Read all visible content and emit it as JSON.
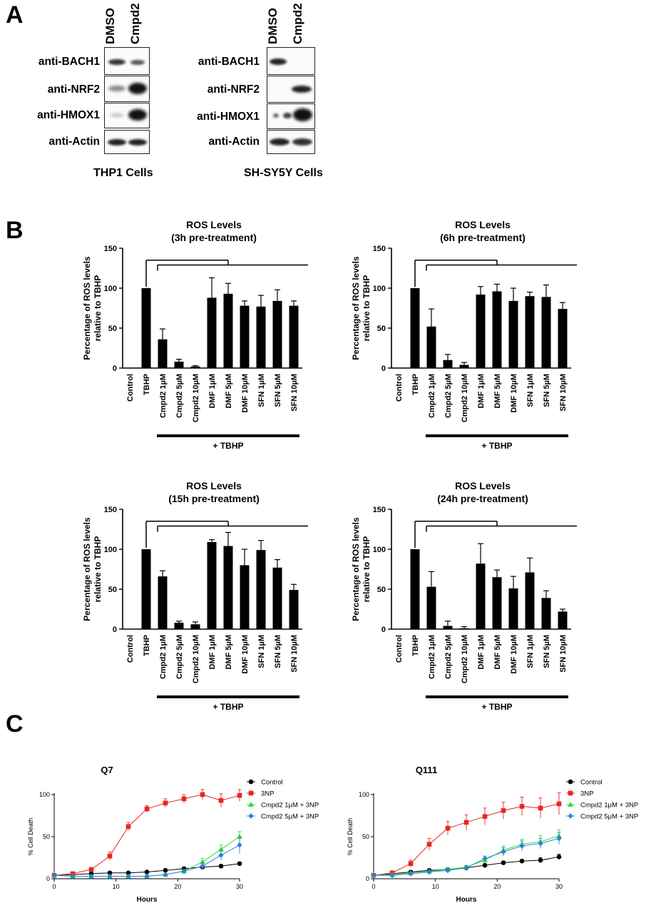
{
  "panels": {
    "a": "A",
    "b": "B",
    "c": "C"
  },
  "western_blots": [
    {
      "columns": [
        "DMSO",
        "Cmpd2"
      ],
      "rows": [
        "anti-BACH1",
        "anti-NRF2",
        "anti-HMOX1",
        "anti-Actin"
      ],
      "caption": "THP1 Cells"
    },
    {
      "columns": [
        "DMSO",
        "Cmpd2"
      ],
      "rows": [
        "anti-BACH1",
        "anti-NRF2",
        "anti-HMOX1",
        "anti-Actin"
      ],
      "caption": "SH-SY5Y Cells"
    }
  ],
  "chart_data": [
    {
      "type": "bar",
      "title": "ROS Levels",
      "subtitle": "(3h pre-treatment)",
      "ylabel": "Percentage of ROS levels relative to TBHP",
      "ylim": [
        0,
        150
      ],
      "yticks": [
        0,
        50,
        100,
        150
      ],
      "categories": [
        "Control",
        "TBHP",
        "Cmpd2 1µM",
        "Cmpd2 5µM",
        "Cmpd2 10µM",
        "DMF 1µM",
        "DMF 5µM",
        "DMF 10µM",
        "SFN 1µM",
        "SFN 5µM",
        "SFN 10µM"
      ],
      "values": [
        0,
        100,
        36,
        8,
        2,
        88,
        93,
        78,
        77,
        84,
        78
      ],
      "errors": [
        0,
        0,
        13,
        3,
        1,
        25,
        13,
        6,
        14,
        14,
        6
      ],
      "group_label": "+ TBHP"
    },
    {
      "type": "bar",
      "title": "ROS Levels",
      "subtitle": "(6h pre-treatment)",
      "ylabel": "Percentage of ROS levels relative to TBHP",
      "ylim": [
        0,
        150
      ],
      "yticks": [
        0,
        50,
        100,
        150
      ],
      "categories": [
        "Control",
        "TBHP",
        "Cmpd2 1µM",
        "Cmpd2 5µM",
        "Cmpd2 10µM",
        "DMF 1µM",
        "DMF 5µM",
        "DMF 10µM",
        "SFN 1µM",
        "SFN 5µM",
        "SFN 10µM"
      ],
      "values": [
        0,
        100,
        52,
        10,
        4,
        92,
        96,
        84,
        90,
        89,
        74
      ],
      "errors": [
        0,
        0,
        22,
        7,
        3,
        10,
        9,
        16,
        5,
        15,
        8
      ],
      "group_label": "+ TBHP"
    },
    {
      "type": "bar",
      "title": "ROS Levels",
      "subtitle": "(15h pre-treatment)",
      "ylabel": "Percentage of ROS levels relative to TBHP",
      "ylim": [
        0,
        150
      ],
      "yticks": [
        0,
        50,
        100,
        150
      ],
      "categories": [
        "Control",
        "TBHP",
        "Cmpd2 1µM",
        "Cmpd2 5µM",
        "Cmpd2 10µM",
        "DMF 1µM",
        "DMF 5µM",
        "DMF 10µM",
        "SFN 1µM",
        "SFN 5µM",
        "SFN 10µM"
      ],
      "values": [
        0,
        100,
        66,
        8,
        6,
        109,
        104,
        80,
        99,
        77,
        49
      ],
      "errors": [
        0,
        0,
        7,
        2,
        3,
        3,
        17,
        20,
        12,
        10,
        7
      ],
      "group_label": "+ TBHP"
    },
    {
      "type": "bar",
      "title": "ROS Levels",
      "subtitle": "(24h pre-treatment)",
      "ylabel": "Percentage of ROS levels relative to TBHP",
      "ylim": [
        0,
        150
      ],
      "yticks": [
        0,
        50,
        100,
        150
      ],
      "categories": [
        "Control",
        "TBHP",
        "Cmpd2 1µM",
        "Cmpd2 5µM",
        "Cmpd2 10µM",
        "DMF 1µM",
        "DMF 5µM",
        "DMF 10µM",
        "SFN 1µM",
        "SFN 5µM",
        "SFN 10µM"
      ],
      "values": [
        0,
        100,
        53,
        4,
        1,
        82,
        65,
        51,
        71,
        39,
        22
      ],
      "errors": [
        0,
        0,
        19,
        6,
        2,
        25,
        9,
        15,
        18,
        9,
        3
      ],
      "group_label": "+ TBHP"
    },
    {
      "type": "line",
      "title": "Q7",
      "xlabel": "Hours",
      "ylabel": "% Cell Death",
      "xlim": [
        0,
        30
      ],
      "ylim": [
        0,
        100
      ],
      "xticks": [
        0,
        10,
        20,
        30
      ],
      "yticks": [
        0,
        50,
        100
      ],
      "x": [
        0,
        3,
        6,
        9,
        12,
        15,
        18,
        21,
        24,
        27,
        30
      ],
      "series": [
        {
          "name": "Control",
          "color": "#000000",
          "marker": "circle",
          "values": [
            4,
            5,
            6,
            7,
            7,
            8,
            10,
            12,
            14,
            15,
            18
          ],
          "errors": [
            1,
            1,
            1,
            1,
            1,
            1,
            1,
            2,
            2,
            2,
            2
          ]
        },
        {
          "name": "3NP",
          "color": "#e8261f",
          "marker": "square",
          "values": [
            4,
            6,
            11,
            27,
            62,
            83,
            90,
            95,
            100,
            93,
            99
          ],
          "errors": [
            1,
            1,
            2,
            5,
            5,
            4,
            5,
            5,
            6,
            8,
            7
          ]
        },
        {
          "name": "Cmpd2 1µM + 3NP",
          "color": "#33dd33",
          "marker": "triangle",
          "values": [
            4,
            3,
            3,
            3,
            3,
            3,
            5,
            9,
            20,
            35,
            50
          ],
          "errors": [
            1,
            1,
            1,
            1,
            1,
            1,
            1,
            2,
            4,
            5,
            6
          ]
        },
        {
          "name": "Cmpd2 5µM + 3NP",
          "color": "#2f7fe0",
          "marker": "diamond",
          "values": [
            4,
            3,
            3,
            3,
            3,
            3,
            5,
            9,
            15,
            28,
            40
          ],
          "errors": [
            1,
            1,
            1,
            1,
            1,
            1,
            1,
            2,
            4,
            6,
            10
          ]
        }
      ]
    },
    {
      "type": "line",
      "title": "Q111",
      "xlabel": "Hours",
      "ylabel": "% Cell Death",
      "xlim": [
        0,
        30
      ],
      "ylim": [
        0,
        100
      ],
      "xticks": [
        0,
        10,
        20,
        30
      ],
      "yticks": [
        0,
        50,
        100
      ],
      "x": [
        0,
        3,
        6,
        9,
        12,
        15,
        18,
        21,
        24,
        27,
        30
      ],
      "series": [
        {
          "name": "Control",
          "color": "#000000",
          "marker": "circle",
          "values": [
            4,
            6,
            8,
            10,
            11,
            13,
            16,
            19,
            21,
            22,
            26
          ],
          "errors": [
            1,
            1,
            1,
            1,
            1,
            1,
            2,
            2,
            2,
            3,
            3
          ]
        },
        {
          "name": "3NP",
          "color": "#e8261f",
          "marker": "square",
          "values": [
            4,
            7,
            18,
            41,
            60,
            67,
            74,
            81,
            86,
            84,
            89
          ],
          "errors": [
            1,
            1,
            4,
            7,
            8,
            9,
            10,
            10,
            11,
            12,
            13
          ]
        },
        {
          "name": "Cmpd2 1µM + 3NP",
          "color": "#33dd33",
          "marker": "triangle",
          "values": [
            4,
            5,
            7,
            9,
            11,
            14,
            22,
            34,
            41,
            44,
            51
          ],
          "errors": [
            1,
            1,
            1,
            1,
            2,
            2,
            3,
            5,
            6,
            7,
            7
          ]
        },
        {
          "name": "Cmpd2 5µM + 3NP",
          "color": "#2f7fe0",
          "marker": "diamond",
          "values": [
            4,
            4,
            6,
            8,
            10,
            13,
            24,
            32,
            39,
            42,
            48
          ],
          "errors": [
            1,
            1,
            1,
            1,
            2,
            2,
            3,
            5,
            6,
            6,
            7
          ]
        }
      ]
    }
  ]
}
